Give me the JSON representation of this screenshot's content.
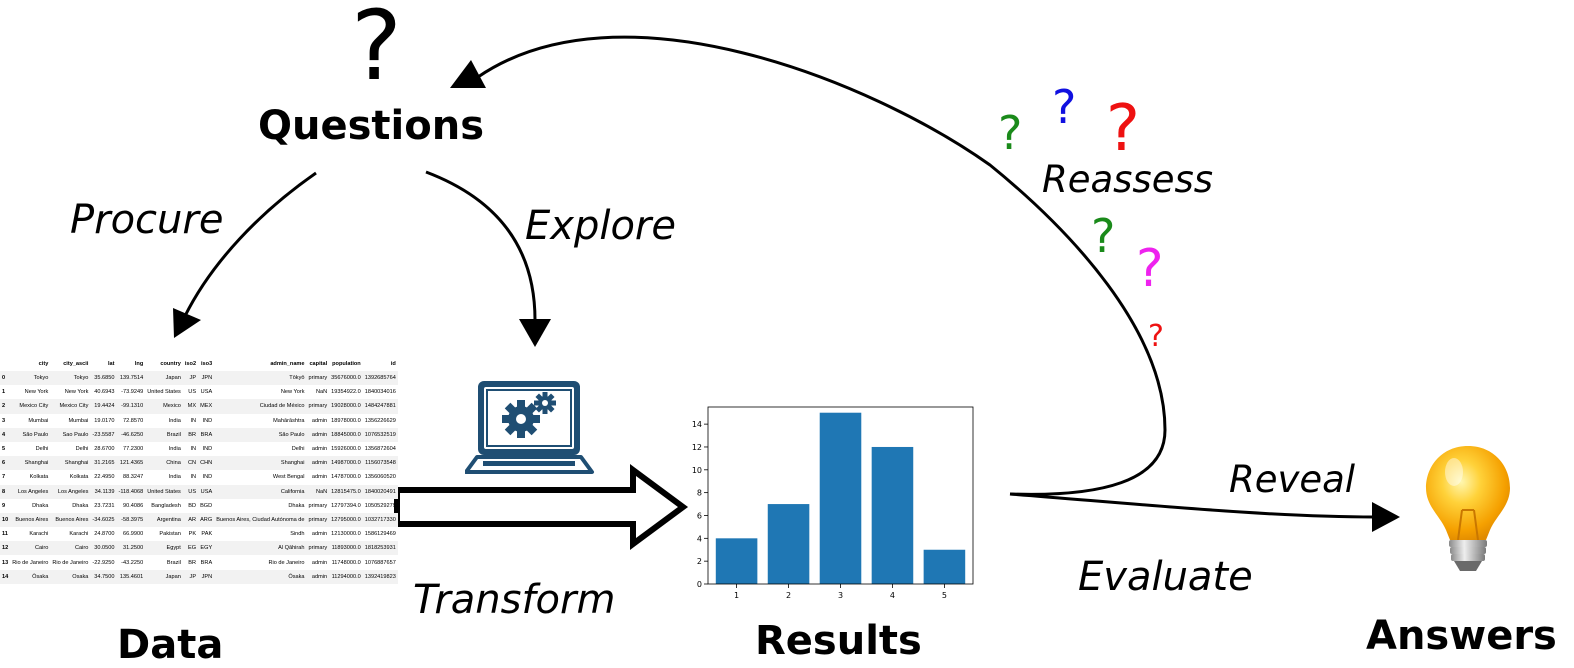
{
  "labels": {
    "questions": "Questions",
    "data": "Data",
    "results": "Results",
    "answers": "Answers",
    "procure": "Procure",
    "explore": "Explore",
    "transform": "Transform",
    "reassess": "Reassess",
    "reveal": "Reveal",
    "evaluate": "Evaluate"
  },
  "question_marks": {
    "big": "?",
    "green1": "?",
    "blue": "?",
    "red_big": "?",
    "green2": "?",
    "magenta": "?",
    "red_small": "?"
  },
  "colors": {
    "green": "#1a8a1a",
    "blue": "#1010e0",
    "red": "#ee1111",
    "magenta": "#ee22ee",
    "bar": "#1f77b4",
    "laptop": "#1f4e73"
  },
  "table": {
    "columns": [
      "",
      "city",
      "city_ascii",
      "lat",
      "lng",
      "country",
      "iso2",
      "iso3",
      "admin_name",
      "capital",
      "population",
      "id"
    ],
    "rows": [
      [
        "0",
        "Tokyo",
        "Tokyo",
        "35.6850",
        "139.7514",
        "Japan",
        "JP",
        "JPN",
        "Tōkyō",
        "primary",
        "35676000.0",
        "1392685764"
      ],
      [
        "1",
        "New York",
        "New York",
        "40.6943",
        "-73.9249",
        "United States",
        "US",
        "USA",
        "New York",
        "NaN",
        "19354922.0",
        "1840034016"
      ],
      [
        "2",
        "Mexico City",
        "Mexico City",
        "19.4424",
        "-99.1310",
        "Mexico",
        "MX",
        "MEX",
        "Ciudad de México",
        "primary",
        "19028000.0",
        "1484247881"
      ],
      [
        "3",
        "Mumbai",
        "Mumbai",
        "19.0170",
        "72.8570",
        "India",
        "IN",
        "IND",
        "Mahārāshtra",
        "admin",
        "18978000.0",
        "1356226629"
      ],
      [
        "4",
        "São Paulo",
        "Sao Paulo",
        "-23.5587",
        "-46.6250",
        "Brazil",
        "BR",
        "BRA",
        "São Paulo",
        "admin",
        "18845000.0",
        "1076532519"
      ],
      [
        "5",
        "Delhi",
        "Delhi",
        "28.6700",
        "77.2300",
        "India",
        "IN",
        "IND",
        "Delhi",
        "admin",
        "15926000.0",
        "1356872604"
      ],
      [
        "6",
        "Shanghai",
        "Shanghai",
        "31.2165",
        "121.4365",
        "China",
        "CN",
        "CHN",
        "Shanghai",
        "admin",
        "14987000.0",
        "1156073548"
      ],
      [
        "7",
        "Kolkata",
        "Kolkata",
        "22.4950",
        "88.3247",
        "India",
        "IN",
        "IND",
        "West Bengal",
        "admin",
        "14787000.0",
        "1356060520"
      ],
      [
        "8",
        "Los Angeles",
        "Los Angeles",
        "34.1139",
        "-118.4068",
        "United States",
        "US",
        "USA",
        "California",
        "NaN",
        "12815475.0",
        "1840020491"
      ],
      [
        "9",
        "Dhaka",
        "Dhaka",
        "23.7231",
        "90.4086",
        "Bangladesh",
        "BD",
        "BGD",
        "Dhaka",
        "primary",
        "12797394.0",
        "1050529279"
      ],
      [
        "10",
        "Buenos Aires",
        "Buenos Aires",
        "-34.6025",
        "-58.3975",
        "Argentina",
        "AR",
        "ARG",
        "Buenos Aires, Ciudad Autónoma de",
        "primary",
        "12795000.0",
        "1032717330"
      ],
      [
        "11",
        "Karachi",
        "Karachi",
        "24.8700",
        "66.9900",
        "Pakistan",
        "PK",
        "PAK",
        "Sindh",
        "admin",
        "12130000.0",
        "1586129469"
      ],
      [
        "12",
        "Cairo",
        "Cairo",
        "30.0500",
        "31.2500",
        "Egypt",
        "EG",
        "EGY",
        "Al Qāhirah",
        "primary",
        "11893000.0",
        "1818253931"
      ],
      [
        "13",
        "Rio de Janeiro",
        "Rio de Janeiro",
        "-22.9250",
        "-43.2250",
        "Brazil",
        "BR",
        "BRA",
        "Rio de Janeiro",
        "admin",
        "11748000.0",
        "1076887657"
      ],
      [
        "14",
        "Ōsaka",
        "Osaka",
        "34.7500",
        "135.4601",
        "Japan",
        "JP",
        "JPN",
        "Ōsaka",
        "admin",
        "11294000.0",
        "1392419823"
      ]
    ]
  },
  "chart_data": {
    "type": "bar",
    "categories": [
      "1",
      "2",
      "3",
      "4",
      "5"
    ],
    "values": [
      4,
      7,
      15,
      12,
      3
    ],
    "ylim": [
      0,
      15.5
    ],
    "yticks": [
      "0",
      "2",
      "4",
      "6",
      "8",
      "10",
      "12",
      "14"
    ],
    "title": "",
    "xlabel": "",
    "ylabel": ""
  }
}
